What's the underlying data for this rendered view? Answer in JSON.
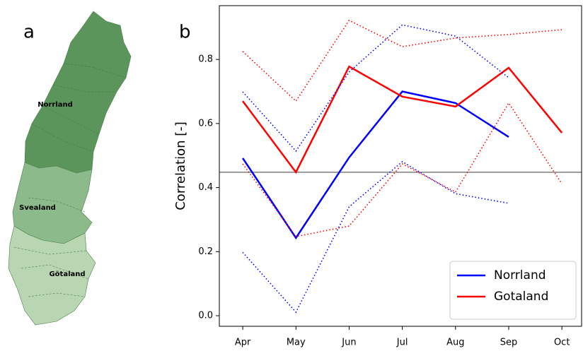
{
  "map": {
    "panel_label": "a",
    "regions": [
      "Norrland",
      "Svealand",
      "Götaland"
    ]
  },
  "chart_data": {
    "type": "line",
    "panel_label": "b",
    "y_label": "Correlation [-]",
    "categories": [
      "Apr",
      "May",
      "Jun",
      "Jul",
      "Aug",
      "Sep",
      "Oct"
    ],
    "ylim": [
      -0.033,
      0.968
    ],
    "yticks": [
      {
        "value": 0,
        "label": "0.0"
      },
      0.2,
      0.4,
      0.6,
      0.8
    ],
    "reference_line": {
      "value": 0.448,
      "color": "#999999"
    },
    "legend": "lower right",
    "series": [
      {
        "name": "Norrland",
        "color": "#0000ff",
        "style": "solid",
        "values": [
          0.492,
          0.243,
          0.494,
          0.7,
          0.664,
          0.558,
          null
        ]
      },
      {
        "name": "Gotaland",
        "color": "#ff0000",
        "style": "solid",
        "values": [
          0.67,
          0.448,
          0.778,
          0.684,
          0.653,
          0.774,
          0.571
        ]
      },
      {
        "color": "#0000ff",
        "style": "dotted",
        "values": [
          0.699,
          0.514,
          0.761,
          0.908,
          0.873,
          0.743,
          null
        ]
      },
      {
        "color": "#0000ff",
        "style": "dotted",
        "values": [
          0.198,
          0.011,
          0.34,
          0.481,
          0.381,
          0.351,
          null
        ]
      },
      {
        "color": "#ff0000",
        "style": "dotted",
        "values": [
          0.825,
          0.67,
          0.922,
          0.84,
          0.867,
          0.878,
          0.893
        ]
      },
      {
        "color": "#ff0000",
        "style": "dotted",
        "values": [
          0.474,
          0.247,
          0.28,
          0.474,
          0.386,
          0.664,
          0.412
        ]
      }
    ]
  }
}
